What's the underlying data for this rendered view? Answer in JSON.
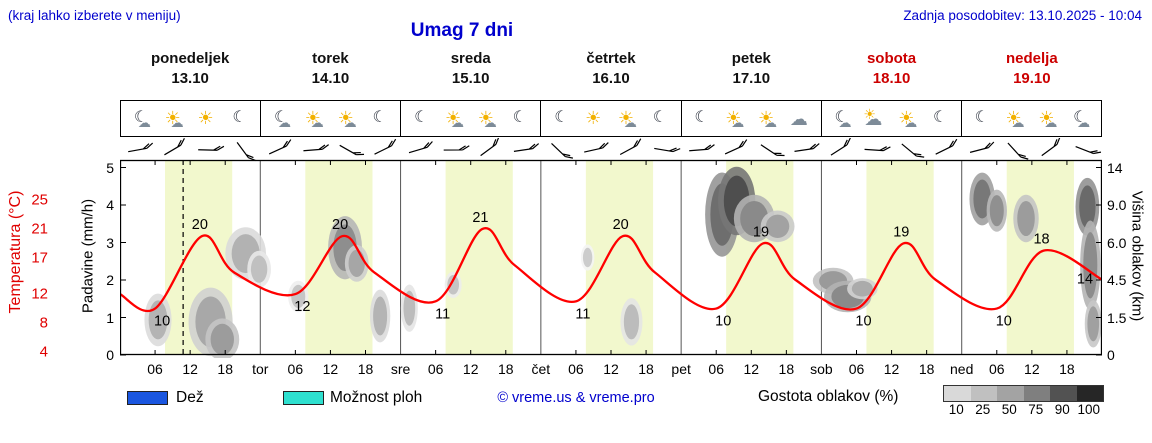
{
  "header": {
    "hint": "(kraj lahko izberete v meniju)",
    "title": "Umag 7 dni",
    "last_update": "Zadnja posodobitev: 13.10.2025 - 10:04"
  },
  "colors": {
    "accent_blue": "#0000cd",
    "weekend_red": "#cc0000",
    "temp_curve": "#ff0000",
    "rain": "#1a56e0",
    "showers": "#2ee0cf",
    "day_band": "#f2f8cd"
  },
  "days": [
    {
      "name": "ponedeljek",
      "date": "13.10",
      "weekend": false,
      "icons": [
        "moon-cloud",
        "sun-cloud",
        "sun",
        "moon"
      ]
    },
    {
      "name": "torek",
      "date": "14.10",
      "weekend": false,
      "icons": [
        "moon-cloud",
        "sun-cloud",
        "sun-cloud",
        "moon"
      ]
    },
    {
      "name": "sreda",
      "date": "15.10",
      "weekend": false,
      "icons": [
        "moon",
        "sun-cloud",
        "sun-cloud",
        "moon"
      ]
    },
    {
      "name": "četrtek",
      "date": "16.10",
      "weekend": false,
      "icons": [
        "moon",
        "sun",
        "sun-cloud",
        "moon"
      ]
    },
    {
      "name": "petek",
      "date": "17.10",
      "weekend": false,
      "icons": [
        "moon",
        "sun-cloud",
        "sun-cloud",
        "cloud"
      ]
    },
    {
      "name": "sobota",
      "date": "18.10",
      "weekend": true,
      "icons": [
        "moon-cloud",
        "cloud-sun",
        "sun-cloud",
        "moon"
      ]
    },
    {
      "name": "nedelja",
      "date": "19.10",
      "weekend": true,
      "icons": [
        "moon",
        "sun-cloud",
        "sun-cloud",
        "moon-cloud"
      ]
    }
  ],
  "axes": {
    "temperature": {
      "label": "Temperatura (°C)",
      "ticks": [
        25,
        21,
        17,
        12,
        8,
        4
      ]
    },
    "precipitation": {
      "label": "Padavine (mm/h)",
      "ticks": [
        5,
        4,
        3,
        2,
        1,
        0
      ]
    },
    "cloud_height": {
      "label": "Višina oblakov (km)",
      "ticks_bottom_up": [
        "0",
        "1.5",
        "4.5",
        "6.0",
        "9.0",
        "14"
      ]
    },
    "time": {
      "hour_labels": [
        "06",
        "12",
        "18"
      ],
      "day_boundary_labels": [
        "tor",
        "sre",
        "čet",
        "pet",
        "sob",
        "ned"
      ]
    }
  },
  "chart_data": {
    "type": "line",
    "title": "Umag 7 dni",
    "x_axis": "hours from Monday 00:00, total 168 h (7 days)",
    "y_axis_left": "Padavine (mm/h) 0-5 / Temperatura 4-25 °C",
    "y_axis_right": "Višina oblakov (km)",
    "temperature_points": [
      [
        0,
        12
      ],
      [
        6,
        10
      ],
      [
        14,
        20
      ],
      [
        19.5,
        15
      ],
      [
        30,
        12
      ],
      [
        38,
        20
      ],
      [
        43.5,
        15
      ],
      [
        54,
        11
      ],
      [
        62,
        21
      ],
      [
        67.5,
        16
      ],
      [
        78,
        11
      ],
      [
        86,
        20
      ],
      [
        91.5,
        15
      ],
      [
        102,
        10
      ],
      [
        110,
        19
      ],
      [
        115.5,
        14
      ],
      [
        126,
        10
      ],
      [
        134,
        19
      ],
      [
        139.5,
        14
      ],
      [
        150,
        10
      ],
      [
        158,
        18
      ],
      [
        168,
        14
      ]
    ],
    "min_labels": [
      [
        6,
        10
      ],
      [
        30,
        12
      ],
      [
        54,
        11
      ],
      [
        78,
        11
      ],
      [
        102,
        10
      ],
      [
        126,
        10
      ],
      [
        150,
        10
      ]
    ],
    "max_labels": [
      [
        14,
        20
      ],
      [
        38,
        20
      ],
      [
        62,
        21
      ],
      [
        86,
        20
      ],
      [
        110,
        19
      ],
      [
        134,
        19
      ],
      [
        158,
        18
      ]
    ],
    "end_label": [
      168,
      14
    ],
    "now_line_hour": 10.8,
    "daylight_band_hours": [
      7.7,
      19.2
    ],
    "precipitation_values": [],
    "cloud_blobs": [
      [
        6.5,
        0.18,
        1.6,
        0.1,
        "#b4b4b4"
      ],
      [
        15.5,
        0.17,
        2.6,
        0.13,
        "#a8a8a8"
      ],
      [
        17.5,
        0.08,
        2.0,
        0.08,
        "#9c9c9c"
      ],
      [
        21.5,
        0.52,
        2.4,
        0.1,
        "#b2b2b2"
      ],
      [
        23.8,
        0.44,
        1.4,
        0.07,
        "#c0c0c0"
      ],
      [
        30.5,
        0.3,
        1.2,
        0.06,
        "#c6c6c6"
      ],
      [
        38.5,
        0.55,
        2.0,
        0.12,
        "#8e8e8e"
      ],
      [
        40.5,
        0.47,
        1.4,
        0.07,
        "#a6a6a6"
      ],
      [
        44.5,
        0.2,
        1.2,
        0.1,
        "#b4b4b4"
      ],
      [
        49.5,
        0.24,
        1.0,
        0.09,
        "#bcbcbc"
      ],
      [
        57.0,
        0.36,
        1.0,
        0.05,
        "#c4c4c4"
      ],
      [
        80.0,
        0.5,
        0.8,
        0.05,
        "#cccccc"
      ],
      [
        87.5,
        0.17,
        1.3,
        0.09,
        "#bcbcbc"
      ],
      [
        103.0,
        0.72,
        2.0,
        0.16,
        "#6e6e6e"
      ],
      [
        105.5,
        0.79,
        2.2,
        0.13,
        "#4e4e4e"
      ],
      [
        108.5,
        0.7,
        2.4,
        0.09,
        "#8a8a8a"
      ],
      [
        112.5,
        0.66,
        2.0,
        0.06,
        "#a2a2a2"
      ],
      [
        122.0,
        0.38,
        2.4,
        0.05,
        "#9a9a9a"
      ],
      [
        124.5,
        0.3,
        2.8,
        0.06,
        "#8a8a8a"
      ],
      [
        127.0,
        0.34,
        1.8,
        0.04,
        "#ababab"
      ],
      [
        147.5,
        0.8,
        1.5,
        0.1,
        "#787878"
      ],
      [
        150.0,
        0.74,
        1.2,
        0.08,
        "#909090"
      ],
      [
        155.0,
        0.7,
        1.5,
        0.09,
        "#9c9c9c"
      ],
      [
        165.5,
        0.76,
        1.4,
        0.11,
        "#6a6a6a"
      ],
      [
        166.0,
        0.46,
        1.2,
        0.17,
        "#8c8c8c"
      ],
      [
        166.5,
        0.16,
        1.0,
        0.09,
        "#a0a0a0"
      ]
    ],
    "wind_barb_angles": [
      8,
      -12,
      20,
      72,
      -6,
      14,
      48,
      -8,
      2,
      18,
      -18,
      10,
      62,
      6,
      -10,
      28,
      14,
      -6,
      52,
      10,
      -14,
      22,
      58,
      -8,
      4,
      66,
      -18,
      40
    ]
  },
  "legend": {
    "rain_label": "Dež",
    "showers_label": "Možnost ploh",
    "copyright": "© vreme.us & vreme.pro",
    "cloud_density_label": "Gostota oblakov (%)",
    "cloud_density_ticks": [
      "10",
      "25",
      "50",
      "75",
      "90",
      "100"
    ],
    "cloud_density_colors": [
      "#d9d9d9",
      "#c0c0c0",
      "#a3a3a3",
      "#7f7f7f",
      "#525252",
      "#262626"
    ]
  }
}
